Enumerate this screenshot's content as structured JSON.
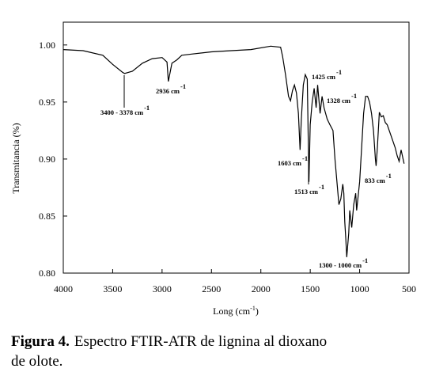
{
  "chart_data": {
    "type": "line",
    "y_label": "Transmitancia (%)",
    "x_label": {
      "text": "Long (cm",
      "sup": "-1",
      "end": ")"
    },
    "xlim": [
      4000,
      500
    ],
    "ylim": [
      0.8,
      1.02
    ],
    "xticks": [
      4000,
      3500,
      3000,
      2500,
      2000,
      1500,
      1000,
      500
    ],
    "yticks": [
      {
        "value": 0.8,
        "label": "0.80"
      },
      0.85,
      {
        "value": 0.9,
        "label": "0.90"
      },
      0.95,
      {
        "value": 1,
        "label": "1.00"
      }
    ],
    "color": "#000000",
    "x": [
      4000,
      3800,
      3600,
      3500,
      3400,
      3380,
      3300,
      3200,
      3100,
      3000,
      2950,
      2936,
      2900,
      2850,
      2800,
      2700,
      2500,
      2300,
      2100,
      1900,
      1800,
      1780,
      1750,
      1720,
      1700,
      1680,
      1660,
      1640,
      1620,
      1603,
      1590,
      1570,
      1550,
      1530,
      1513,
      1500,
      1480,
      1460,
      1440,
      1425,
      1400,
      1380,
      1360,
      1328,
      1300,
      1270,
      1250,
      1230,
      1210,
      1190,
      1170,
      1160,
      1150,
      1140,
      1130,
      1110,
      1100,
      1080,
      1060,
      1040,
      1030,
      1000,
      980,
      960,
      940,
      920,
      900,
      880,
      860,
      840,
      833,
      820,
      800,
      780,
      760,
      740,
      720,
      700,
      680,
      660,
      640,
      620,
      600,
      580,
      560,
      550
    ],
    "values": [
      0.996,
      0.995,
      0.991,
      0.983,
      0.976,
      0.975,
      0.977,
      0.984,
      0.988,
      0.989,
      0.985,
      0.968,
      0.984,
      0.987,
      0.991,
      0.992,
      0.994,
      0.995,
      0.996,
      0.999,
      0.998,
      0.99,
      0.974,
      0.955,
      0.951,
      0.96,
      0.965,
      0.958,
      0.94,
      0.908,
      0.935,
      0.965,
      0.974,
      0.97,
      0.88,
      0.93,
      0.95,
      0.962,
      0.945,
      0.965,
      0.94,
      0.955,
      0.945,
      0.935,
      0.93,
      0.925,
      0.9,
      0.88,
      0.86,
      0.865,
      0.878,
      0.87,
      0.845,
      0.83,
      0.814,
      0.835,
      0.855,
      0.84,
      0.86,
      0.87,
      0.855,
      0.88,
      0.91,
      0.94,
      0.955,
      0.955,
      0.95,
      0.94,
      0.925,
      0.9,
      0.894,
      0.91,
      0.941,
      0.937,
      0.938,
      0.932,
      0.93,
      0.925,
      0.92,
      0.915,
      0.91,
      0.903,
      0.898,
      0.908,
      0.9,
      0.896
    ],
    "annotations": [
      {
        "text": "3400 - 3378 cm",
        "sup": "-1"
      },
      {
        "text": "2936 cm",
        "sup": "-1"
      },
      {
        "text": "1603 cm",
        "sup": "-1"
      },
      {
        "text": "1513 cm",
        "sup": "-1"
      },
      {
        "text": "1425 cm",
        "sup": "-1"
      },
      {
        "text": "1328 cm",
        "sup": "-1"
      },
      {
        "text": "833 cm",
        "sup": "-1"
      },
      {
        "text": "1300 - 1000 cm",
        "sup": "-1"
      }
    ]
  },
  "caption": {
    "label": "Figura 4.",
    "text": "Espectro FTIR-ATR de lignina al dioxano",
    "text2": "de olote."
  }
}
